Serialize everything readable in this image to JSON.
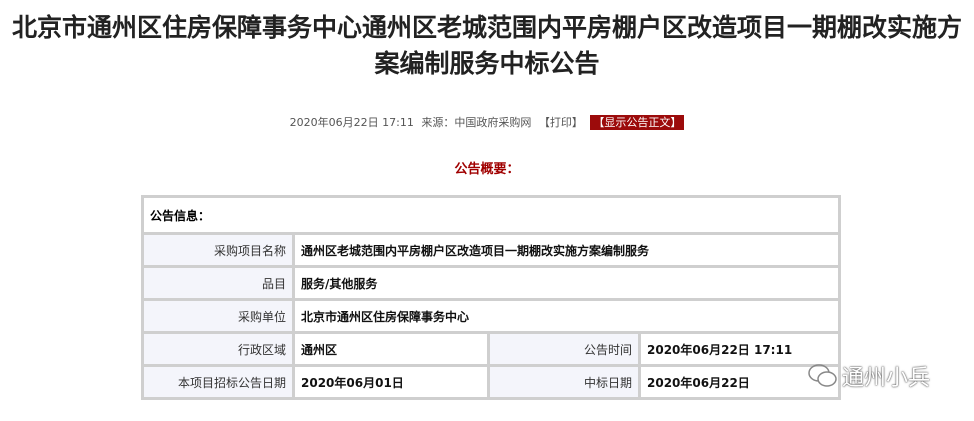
{
  "title": "北京市通州区住房保障事务中心通州区老城范围内平房棚户区改造项目一期棚改实施方案编制服务中标公告",
  "meta": {
    "datetime": "2020年06月22日  17:11",
    "source": "来源：中国政府采购网",
    "print": "【打印】",
    "show_text": "【显示公告正文】"
  },
  "summary_label": "公告概要：",
  "table": {
    "header": "公告信息：",
    "rows": [
      {
        "label": "采购项目名称",
        "value": "通州区老城范围内平房棚户区改造项目一期棚改实施方案编制服务"
      },
      {
        "label": "品目",
        "value": "服务/其他服务"
      },
      {
        "label": "采购单位",
        "value": "北京市通州区住房保障事务中心"
      }
    ],
    "pairs": [
      {
        "label1": "行政区域",
        "value1": "通州区",
        "label2": "公告时间",
        "value2": "2020年06月22日  17:11"
      },
      {
        "label1": "本项目招标公告日期",
        "value1": "2020年06月01日",
        "label2": "中标日期",
        "value2": "2020年06月22日"
      }
    ]
  },
  "watermark": "通州小兵"
}
